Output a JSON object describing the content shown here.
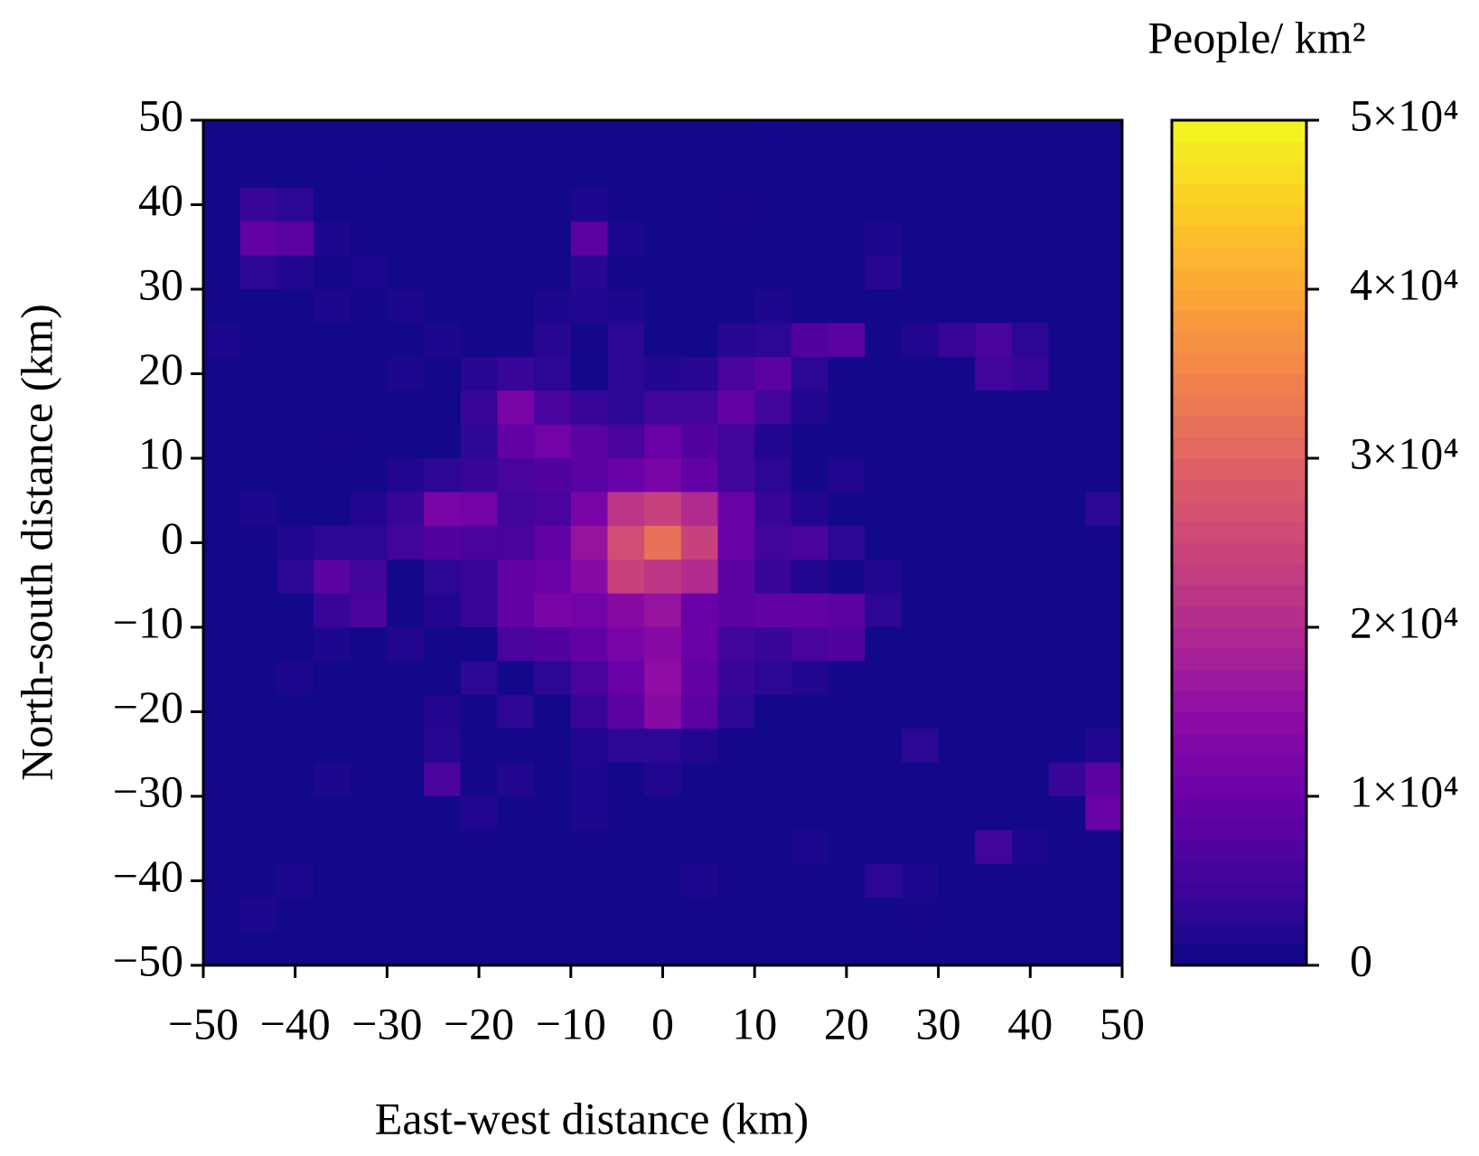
{
  "chart_data": {
    "type": "heatmap",
    "xlabel": "East-west distance (km)",
    "ylabel": "North-south distance (km)",
    "colorbar_label": "People/ km²",
    "colormap": "plasma",
    "x": [
      -48,
      -44,
      -40,
      -36,
      -32,
      -28,
      -24,
      -20,
      -16,
      -12,
      -8,
      -4,
      0,
      4,
      8,
      12,
      16,
      20,
      24,
      28,
      32,
      36,
      40,
      44,
      48
    ],
    "y": [
      48,
      44,
      40,
      36,
      32,
      28,
      24,
      20,
      16,
      12,
      8,
      4,
      0,
      -4,
      -8,
      -12,
      -16,
      -20,
      -24,
      -28,
      -32,
      -36,
      -40,
      -44,
      -48
    ],
    "z": [
      [
        500,
        500,
        500,
        500,
        500,
        500,
        500,
        500,
        500,
        500,
        500,
        500,
        500,
        500,
        500,
        800,
        500,
        500,
        500,
        500,
        500,
        500,
        500,
        500,
        500
      ],
      [
        500,
        500,
        500,
        500,
        800,
        500,
        500,
        500,
        500,
        500,
        500,
        500,
        500,
        500,
        500,
        500,
        500,
        500,
        500,
        500,
        500,
        500,
        500,
        500,
        500
      ],
      [
        500,
        4000,
        3000,
        500,
        500,
        500,
        500,
        500,
        500,
        500,
        1500,
        500,
        500,
        500,
        1000,
        500,
        500,
        500,
        500,
        500,
        500,
        500,
        500,
        500,
        500
      ],
      [
        500,
        9000,
        8000,
        1500,
        500,
        500,
        500,
        500,
        500,
        500,
        8000,
        1500,
        500,
        500,
        500,
        500,
        500,
        500,
        1500,
        500,
        500,
        500,
        500,
        500,
        500
      ],
      [
        500,
        3000,
        2000,
        500,
        1500,
        500,
        500,
        500,
        500,
        500,
        2500,
        500,
        500,
        500,
        500,
        500,
        500,
        500,
        2500,
        500,
        500,
        500,
        500,
        500,
        500
      ],
      [
        500,
        500,
        500,
        1500,
        500,
        1500,
        500,
        500,
        500,
        1500,
        2000,
        1500,
        500,
        500,
        500,
        1500,
        500,
        500,
        500,
        500,
        500,
        500,
        500,
        500,
        500
      ],
      [
        1500,
        500,
        500,
        500,
        500,
        500,
        1500,
        500,
        500,
        2500,
        500,
        3000,
        500,
        500,
        2500,
        3000,
        7000,
        8000,
        500,
        2000,
        4000,
        6000,
        3000,
        500,
        500
      ],
      [
        500,
        500,
        500,
        500,
        500,
        1500,
        500,
        2500,
        4000,
        3000,
        500,
        3000,
        2000,
        2500,
        6000,
        8000,
        3000,
        500,
        500,
        500,
        500,
        5000,
        4000,
        500,
        500
      ],
      [
        500,
        500,
        500,
        500,
        500,
        500,
        500,
        4000,
        12000,
        6000,
        4000,
        3000,
        5000,
        5000,
        9000,
        5000,
        2000,
        500,
        500,
        500,
        500,
        500,
        500,
        500,
        500
      ],
      [
        500,
        500,
        500,
        1000,
        500,
        500,
        500,
        3000,
        9000,
        11000,
        8000,
        6000,
        10000,
        7000,
        5000,
        2000,
        500,
        500,
        500,
        500,
        500,
        500,
        500,
        500,
        500
      ],
      [
        500,
        500,
        500,
        500,
        500,
        2000,
        3000,
        4000,
        6000,
        7000,
        8000,
        10000,
        12000,
        9000,
        5000,
        3000,
        500,
        2000,
        500,
        500,
        500,
        500,
        500,
        500,
        500
      ],
      [
        500,
        1500,
        500,
        500,
        2000,
        4000,
        12000,
        11000,
        5000,
        6000,
        12000,
        22000,
        24000,
        20000,
        10000,
        4000,
        2000,
        500,
        500,
        500,
        500,
        500,
        500,
        500,
        3000
      ],
      [
        500,
        500,
        2000,
        3000,
        3000,
        5000,
        7000,
        6000,
        6000,
        9000,
        16000,
        26000,
        32000,
        24000,
        10000,
        5000,
        6000,
        3000,
        500,
        500,
        500,
        500,
        500,
        500,
        500
      ],
      [
        500,
        500,
        3000,
        8000,
        5000,
        500,
        3000,
        4000,
        9000,
        10000,
        14000,
        24000,
        22000,
        20000,
        8000,
        4000,
        2000,
        500,
        2000,
        500,
        500,
        500,
        500,
        500,
        500
      ],
      [
        500,
        500,
        500,
        4000,
        6000,
        500,
        2000,
        4000,
        9000,
        12000,
        11000,
        14000,
        16000,
        10000,
        8000,
        9000,
        9000,
        8000,
        3000,
        500,
        500,
        500,
        500,
        500,
        500
      ],
      [
        500,
        500,
        500,
        1500,
        500,
        2000,
        500,
        500,
        6000,
        7000,
        9000,
        12000,
        14000,
        10000,
        5000,
        4000,
        6000,
        7000,
        500,
        500,
        500,
        500,
        500,
        500,
        500
      ],
      [
        500,
        500,
        1500,
        500,
        500,
        500,
        500,
        3000,
        500,
        3000,
        6000,
        10000,
        15000,
        9000,
        4000,
        3000,
        2000,
        500,
        500,
        500,
        500,
        500,
        500,
        500,
        500
      ],
      [
        500,
        500,
        500,
        500,
        500,
        500,
        2000,
        500,
        3000,
        500,
        4000,
        8000,
        14000,
        8000,
        3000,
        500,
        500,
        500,
        500,
        500,
        500,
        500,
        500,
        500,
        500
      ],
      [
        500,
        500,
        500,
        500,
        500,
        500,
        2500,
        500,
        500,
        500,
        2000,
        3000,
        3000,
        2000,
        500,
        500,
        500,
        500,
        500,
        3000,
        500,
        500,
        500,
        500,
        2000
      ],
      [
        500,
        500,
        500,
        1500,
        500,
        500,
        6000,
        500,
        2000,
        500,
        1500,
        500,
        2000,
        500,
        500,
        500,
        500,
        500,
        500,
        500,
        500,
        500,
        500,
        4000,
        8000
      ],
      [
        500,
        500,
        500,
        500,
        500,
        500,
        500,
        2000,
        500,
        500,
        1500,
        500,
        500,
        500,
        500,
        500,
        500,
        500,
        500,
        500,
        500,
        500,
        500,
        500,
        10000
      ],
      [
        500,
        500,
        500,
        500,
        500,
        500,
        500,
        500,
        500,
        500,
        500,
        500,
        500,
        500,
        500,
        500,
        1500,
        500,
        500,
        500,
        500,
        5000,
        1500,
        500,
        500
      ],
      [
        500,
        500,
        1500,
        500,
        500,
        500,
        500,
        500,
        500,
        500,
        500,
        500,
        500,
        1500,
        500,
        500,
        500,
        500,
        3000,
        1500,
        500,
        500,
        500,
        500,
        500
      ],
      [
        500,
        1500,
        500,
        500,
        500,
        500,
        500,
        500,
        500,
        500,
        500,
        500,
        500,
        500,
        500,
        500,
        500,
        500,
        500,
        1000,
        500,
        500,
        500,
        500,
        500
      ],
      [
        500,
        500,
        500,
        500,
        500,
        500,
        500,
        500,
        500,
        500,
        500,
        500,
        500,
        500,
        500,
        500,
        500,
        500,
        500,
        500,
        500,
        500,
        500,
        500,
        500
      ]
    ],
    "xlim": [
      -50,
      50
    ],
    "ylim": [
      -50,
      50
    ],
    "zlim": [
      0,
      50000
    ],
    "xticks": [
      {
        "value": -50,
        "label": "−50"
      },
      {
        "value": -40,
        "label": "−40"
      },
      {
        "value": -30,
        "label": "−30"
      },
      {
        "value": -20,
        "label": "−20"
      },
      {
        "value": -10,
        "label": "−10"
      },
      0,
      10,
      20,
      30,
      40,
      50
    ],
    "yticks": [
      {
        "value": -50,
        "label": "−50"
      },
      {
        "value": -40,
        "label": "−40"
      },
      {
        "value": -30,
        "label": "−30"
      },
      {
        "value": -20,
        "label": "−20"
      },
      {
        "value": -10,
        "label": "−10"
      },
      0,
      10,
      20,
      30,
      40,
      50
    ],
    "zticks": [
      0,
      {
        "value": 10000,
        "label": "1×10⁴"
      },
      {
        "value": 20000,
        "label": "2×10⁴"
      },
      {
        "value": 30000,
        "label": "3×10⁴"
      },
      {
        "value": 40000,
        "label": "4×10⁴"
      },
      {
        "value": 50000,
        "label": "5×10⁴"
      }
    ]
  }
}
